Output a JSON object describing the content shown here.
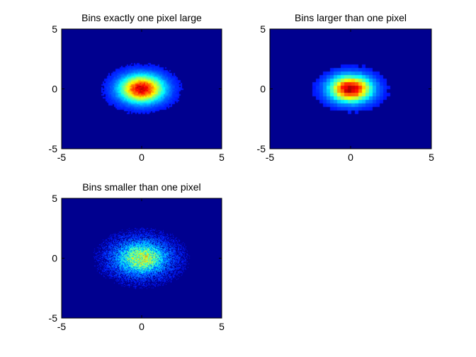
{
  "chart_data": [
    {
      "type": "heatmap",
      "title": "Bins exactly one pixel large",
      "xlabel": "",
      "ylabel": "",
      "xlim": [
        -5,
        5
      ],
      "ylim": [
        -5,
        5
      ],
      "xticks": [
        -5,
        0,
        5
      ],
      "yticks": [
        -5,
        0,
        5
      ],
      "colormap": "jet",
      "background": "#00008f",
      "distribution": {
        "center": [
          0,
          0
        ],
        "sigma": [
          0.9,
          0.75
        ],
        "peak": 1.0,
        "noise": 0.06
      },
      "grid": false
    },
    {
      "type": "heatmap",
      "title": "Bins larger than one pixel",
      "xlabel": "",
      "ylabel": "",
      "xlim": [
        -5,
        5
      ],
      "ylim": [
        -5,
        5
      ],
      "xticks": [
        -5,
        0,
        5
      ],
      "yticks": [
        -5,
        0,
        5
      ],
      "colormap": "jet",
      "background": "#00008f",
      "distribution": {
        "center": [
          0,
          0
        ],
        "sigma": [
          0.85,
          0.72
        ],
        "peak": 1.05,
        "noise": 0.04
      },
      "grid": false
    },
    {
      "type": "heatmap",
      "title": "Bins smaller than one pixel",
      "xlabel": "",
      "ylabel": "",
      "xlim": [
        -5,
        5
      ],
      "ylim": [
        -5,
        5
      ],
      "xticks": [
        -5,
        0,
        5
      ],
      "yticks": [
        -5,
        0,
        5
      ],
      "colormap": "jet",
      "background": "#00008f",
      "distribution": {
        "center": [
          0,
          0
        ],
        "sigma": [
          0.95,
          0.8
        ],
        "peak": 0.55,
        "noise": 0.35
      },
      "grid": false
    }
  ]
}
